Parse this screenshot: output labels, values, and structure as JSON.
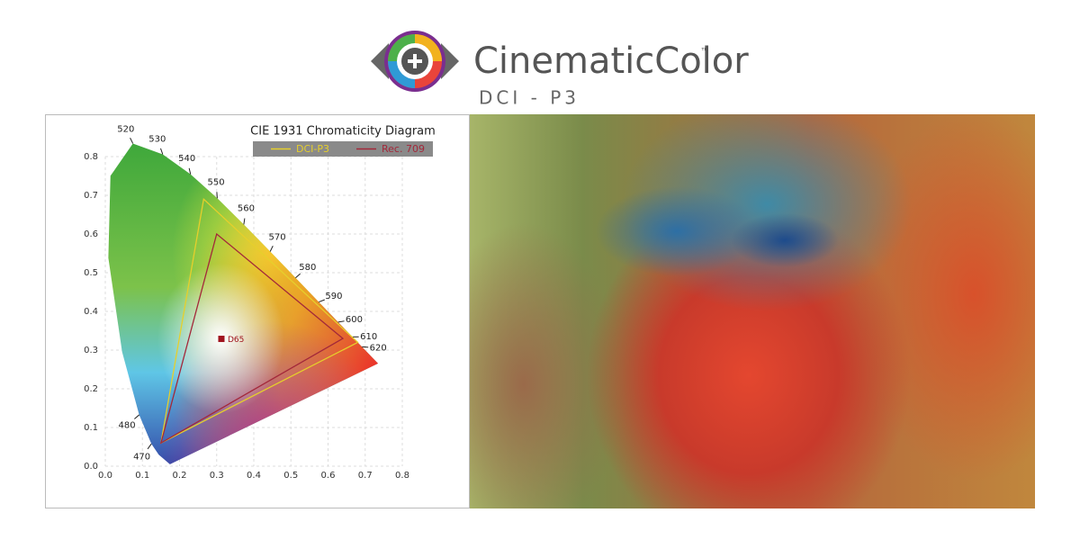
{
  "header": {
    "brand": "CinematicColor",
    "trademark": "™",
    "subtitle": "DCI - P3"
  },
  "chart_data": {
    "type": "chromaticity",
    "title": "CIE 1931 Chromaticity Diagram",
    "xlim": [
      0,
      0.8
    ],
    "ylim": [
      0,
      0.8
    ],
    "xticks": [
      {
        "value": 0,
        "label": "0.0"
      },
      0.1,
      0.2,
      0.3,
      0.4,
      0.5,
      0.6,
      0.7,
      0.8
    ],
    "yticks": [
      {
        "value": 0,
        "label": "0.0"
      },
      0.1,
      0.2,
      0.3,
      0.4,
      0.5,
      0.6,
      0.7,
      0.8
    ],
    "grid": true,
    "locus": {
      "labels": [
        null,
        null,
        "470",
        "480",
        null,
        null,
        null,
        "520",
        "530",
        "540",
        "550",
        "560",
        "570",
        "580",
        "590",
        "600",
        "610",
        "620",
        null
      ],
      "x": [
        0.1741,
        0.144,
        0.1241,
        0.0913,
        0.0454,
        0.0082,
        0.0139,
        0.0743,
        0.1547,
        0.2296,
        0.3016,
        0.3731,
        0.4441,
        0.5125,
        0.5752,
        0.627,
        0.6658,
        0.6915,
        0.7347
      ],
      "y": [
        0.005,
        0.0297,
        0.0578,
        0.1327,
        0.295,
        0.5384,
        0.7502,
        0.8338,
        0.8059,
        0.7543,
        0.6923,
        0.6245,
        0.5547,
        0.4866,
        0.4242,
        0.3725,
        0.334,
        0.3083,
        0.2653
      ]
    },
    "series": [
      {
        "name": "DCI-P3",
        "color": "#e6cf2c",
        "x": [
          0.68,
          0.265,
          0.15
        ],
        "y": [
          0.32,
          0.69,
          0.06
        ]
      },
      {
        "name": "Rec. 709",
        "color": "#a3283a",
        "x": [
          0.64,
          0.3,
          0.15
        ],
        "y": [
          0.33,
          0.6,
          0.06
        ]
      }
    ],
    "white_point": {
      "label": "D65",
      "x": 0.3127,
      "y": 0.329,
      "color": "#a0141e"
    }
  }
}
